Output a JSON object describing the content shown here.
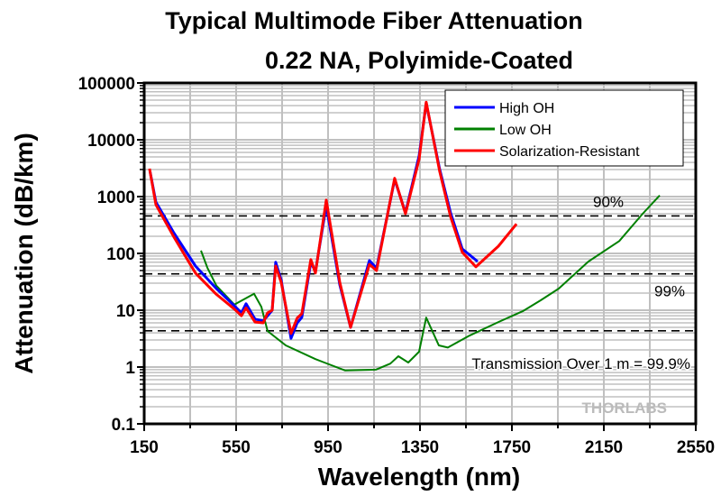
{
  "chart_data": {
    "type": "line",
    "title": "Typical Multimode Fiber Attenuation",
    "subtitle": "0.22 NA, Polyimide-Coated",
    "xlabel": "Wavelength (nm)",
    "ylabel": "Attenuation (dB/km)",
    "xlim": [
      150,
      2550
    ],
    "ylim": [
      0.1,
      100000
    ],
    "yscale": "log",
    "grid": true,
    "legend_position": "top-right",
    "x_ticks": [
      "150",
      "550",
      "950",
      "1350",
      "1750",
      "2150",
      "2550"
    ],
    "y_ticks": [
      "0.1",
      "1",
      "10",
      "100",
      "1000",
      "10000",
      "100000"
    ],
    "series": [
      {
        "name": "High OH",
        "color": "#0000ff",
        "x": [
          176,
          201,
          279,
          373,
          464,
          542,
          573,
          593,
          632,
          668,
          687,
          707,
          722,
          746,
          789,
          816,
          836,
          875,
          895,
          942,
          1001,
          1048,
          1130,
          1161,
          1240,
          1287,
          1346,
          1377,
          1436,
          1483,
          1534,
          1601
        ],
        "y": [
          2700,
          800,
          230,
          60,
          24,
          12,
          9,
          13,
          7,
          6.5,
          8,
          10,
          70,
          34,
          3.2,
          6,
          7.5,
          70,
          48,
          700,
          28,
          5,
          75,
          55,
          2000,
          520,
          5200,
          44000,
          3000,
          520,
          120,
          72
        ]
      },
      {
        "name": "Low OH",
        "color": "#008000",
        "x": [
          397,
          425,
          464,
          542,
          628,
          660,
          687,
          766,
          895,
          934,
          1025,
          1158,
          1221,
          1256,
          1299,
          1346,
          1377,
          1432,
          1471,
          1561,
          1691,
          1797,
          1876,
          1954,
          2083,
          2217,
          2319,
          2393
        ],
        "y": [
          112,
          56,
          27,
          12.6,
          19.5,
          11.5,
          4.3,
          2.4,
          1.38,
          1.2,
          0.87,
          0.9,
          1.15,
          1.55,
          1.2,
          1.86,
          7.4,
          2.4,
          2.2,
          3.5,
          6.2,
          9.6,
          15,
          24,
          72,
          165,
          500,
          1050
        ]
      },
      {
        "name": "Solarization-Resistant",
        "color": "#ff0000",
        "x": [
          173,
          201,
          279,
          373,
          464,
          542,
          573,
          593,
          632,
          668,
          687,
          707,
          722,
          746,
          789,
          816,
          836,
          875,
          895,
          942,
          1001,
          1048,
          1130,
          1161,
          1240,
          1287,
          1346,
          1377,
          1436,
          1483,
          1534,
          1593,
          1691,
          1770
        ],
        "y": [
          3100,
          720,
          195,
          45,
          19,
          10.5,
          8,
          11,
          6.2,
          6,
          9,
          10,
          60,
          31,
          3.9,
          7.3,
          8.7,
          78,
          45,
          870,
          31,
          5,
          64,
          50,
          2100,
          500,
          4500,
          46000,
          2750,
          445,
          105,
          58,
          134,
          330
        ]
      }
    ],
    "reference_lines": [
      {
        "label": "90%",
        "y": 457.6
      },
      {
        "label": "99%",
        "y": 43.6
      },
      {
        "label": "Transmission Over 1 m = 99.9%",
        "y": 4.35
      }
    ],
    "watermark": "THORLABS"
  }
}
